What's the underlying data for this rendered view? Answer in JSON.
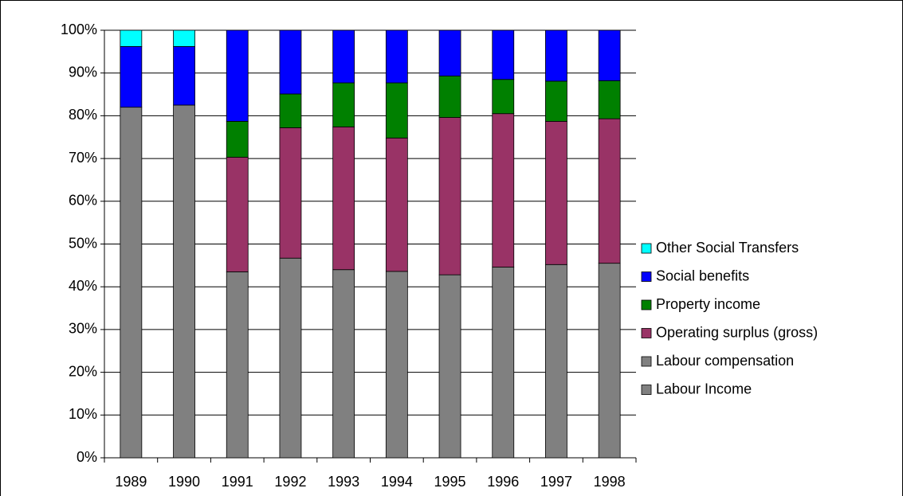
{
  "chart_data": {
    "type": "stacked_bar",
    "categories": [
      "1989",
      "1990",
      "1991",
      "1992",
      "1993",
      "1994",
      "1995",
      "1996",
      "1997",
      "1998"
    ],
    "series": [
      {
        "name": "Labour Income",
        "color": "#808080",
        "values": [
          82,
          82.5,
          null,
          null,
          null,
          null,
          null,
          null,
          null,
          null
        ]
      },
      {
        "name": "Labour compensation",
        "color": "#808080",
        "values": [
          null,
          null,
          43.5,
          46.7,
          44,
          43.6,
          42.8,
          44.6,
          45.2,
          45.5
        ]
      },
      {
        "name": "Operating surplus (gross)",
        "color": "#993366",
        "values": [
          null,
          null,
          26.8,
          30.5,
          33.4,
          31.2,
          36.8,
          35.9,
          33.5,
          33.8
        ]
      },
      {
        "name": "Property income",
        "color": "#008000",
        "values": [
          null,
          null,
          8.4,
          7.9,
          10.3,
          12.9,
          9.7,
          8,
          9.4,
          8.9
        ]
      },
      {
        "name": "Social benefits",
        "color": "#0000ff",
        "values": [
          14.2,
          13.7,
          21.3,
          14.9,
          12.3,
          12.3,
          10.7,
          11.5,
          11.9,
          11.8
        ]
      },
      {
        "name": "Other Social Transfers",
        "color": "#00ffff",
        "values": [
          3.8,
          3.8,
          null,
          null,
          null,
          null,
          null,
          null,
          null,
          null
        ]
      }
    ],
    "ylim": [
      0,
      100
    ],
    "yticks": [
      {
        "value": 0,
        "label": "0%"
      },
      {
        "value": 10,
        "label": "10%"
      },
      {
        "value": 20,
        "label": "20%"
      },
      {
        "value": 30,
        "label": "30%"
      },
      {
        "value": 40,
        "label": "40%"
      },
      {
        "value": 50,
        "label": "50%"
      },
      {
        "value": 60,
        "label": "60%"
      },
      {
        "value": 70,
        "label": "70%"
      },
      {
        "value": 80,
        "label": "80%"
      },
      {
        "value": 90,
        "label": "90%"
      },
      {
        "value": 100,
        "label": "100%"
      }
    ],
    "grid": true,
    "legend": "right"
  }
}
